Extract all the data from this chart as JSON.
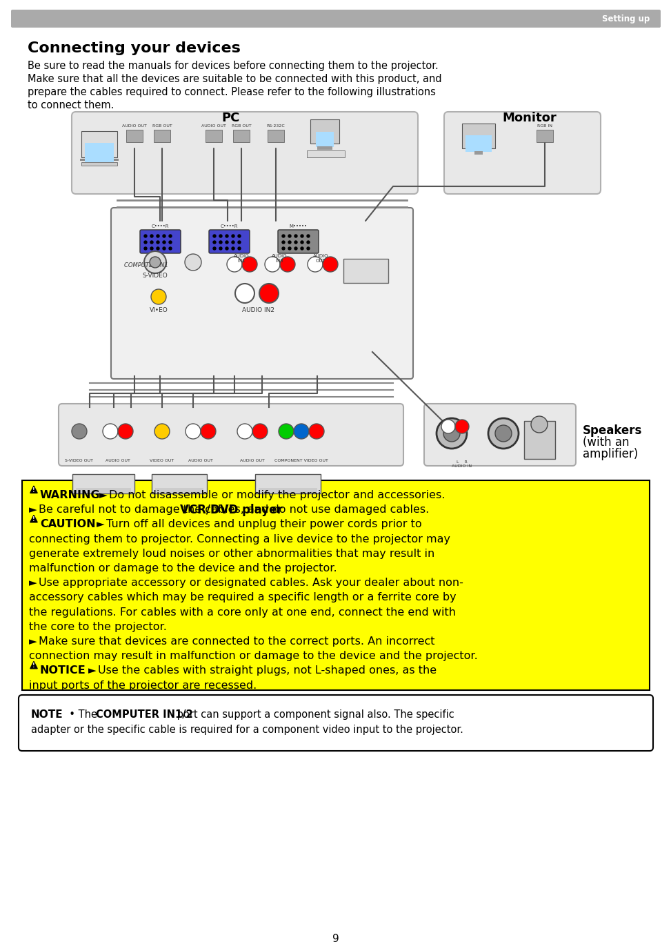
{
  "page_bg": "#ffffff",
  "header_bar_color": "#aaaaaa",
  "header_text": "Setting up",
  "header_text_color": "#ffffff",
  "title": "Connecting your devices",
  "title_color": "#000000",
  "intro_line1": "Be sure to read the manuals for devices before connecting them to the projector.",
  "intro_line2": "Make sure that all the devices are suitable to be connected with this product, and",
  "intro_line3": "prepare the cables required to connect. Please refer to the following illustrations",
  "intro_line4": "to connect them.",
  "warning_bg": "#ffff00",
  "warning_border": "#000000",
  "note_bg": "#ffffff",
  "note_border": "#000000",
  "page_number": "9",
  "diagram_bg": "#ffffff",
  "diagram_border": "#aaaaaa",
  "pc_label": "PC",
  "monitor_label": "Monitor",
  "vcr_label": "VCR/DVD player",
  "speakers_label_line1": "Speakers",
  "speakers_label_line2": "(with an",
  "speakers_label_line3": "amplifier)",
  "warn_lines": [
    [
      "WARNING",
      true,
      true,
      "Do not disassemble or modify the projector and accessories."
    ],
    [
      "",
      false,
      true,
      "Be careful not to damage the cables, and do not use damaged cables."
    ],
    [
      "CAUTION",
      true,
      true,
      "Turn off all devices and unplug their power cords prior to"
    ],
    [
      "",
      false,
      false,
      "connecting them to projector. Connecting a live device to the projector may"
    ],
    [
      "",
      false,
      false,
      "generate extremely loud noises or other abnormalities that may result in"
    ],
    [
      "",
      false,
      false,
      "malfunction or damage to the device and the projector."
    ],
    [
      "",
      false,
      true,
      "Use appropriate accessory or designated cables. Ask your dealer about non-"
    ],
    [
      "",
      false,
      false,
      "accessory cables which may be required a specific length or a ferrite core by"
    ],
    [
      "",
      false,
      false,
      "the regulations. For cables with a core only at one end, connect the end with"
    ],
    [
      "",
      false,
      false,
      "the core to the projector."
    ],
    [
      "",
      false,
      true,
      "Make sure that devices are connected to the correct ports. An incorrect"
    ],
    [
      "",
      false,
      false,
      "connection may result in malfunction or damage to the device and the projector."
    ],
    [
      "NOTICE",
      true,
      true,
      "Use the cables with straight plugs, not L-shaped ones, as the"
    ],
    [
      "",
      false,
      false,
      "input ports of the projector are recessed."
    ]
  ]
}
